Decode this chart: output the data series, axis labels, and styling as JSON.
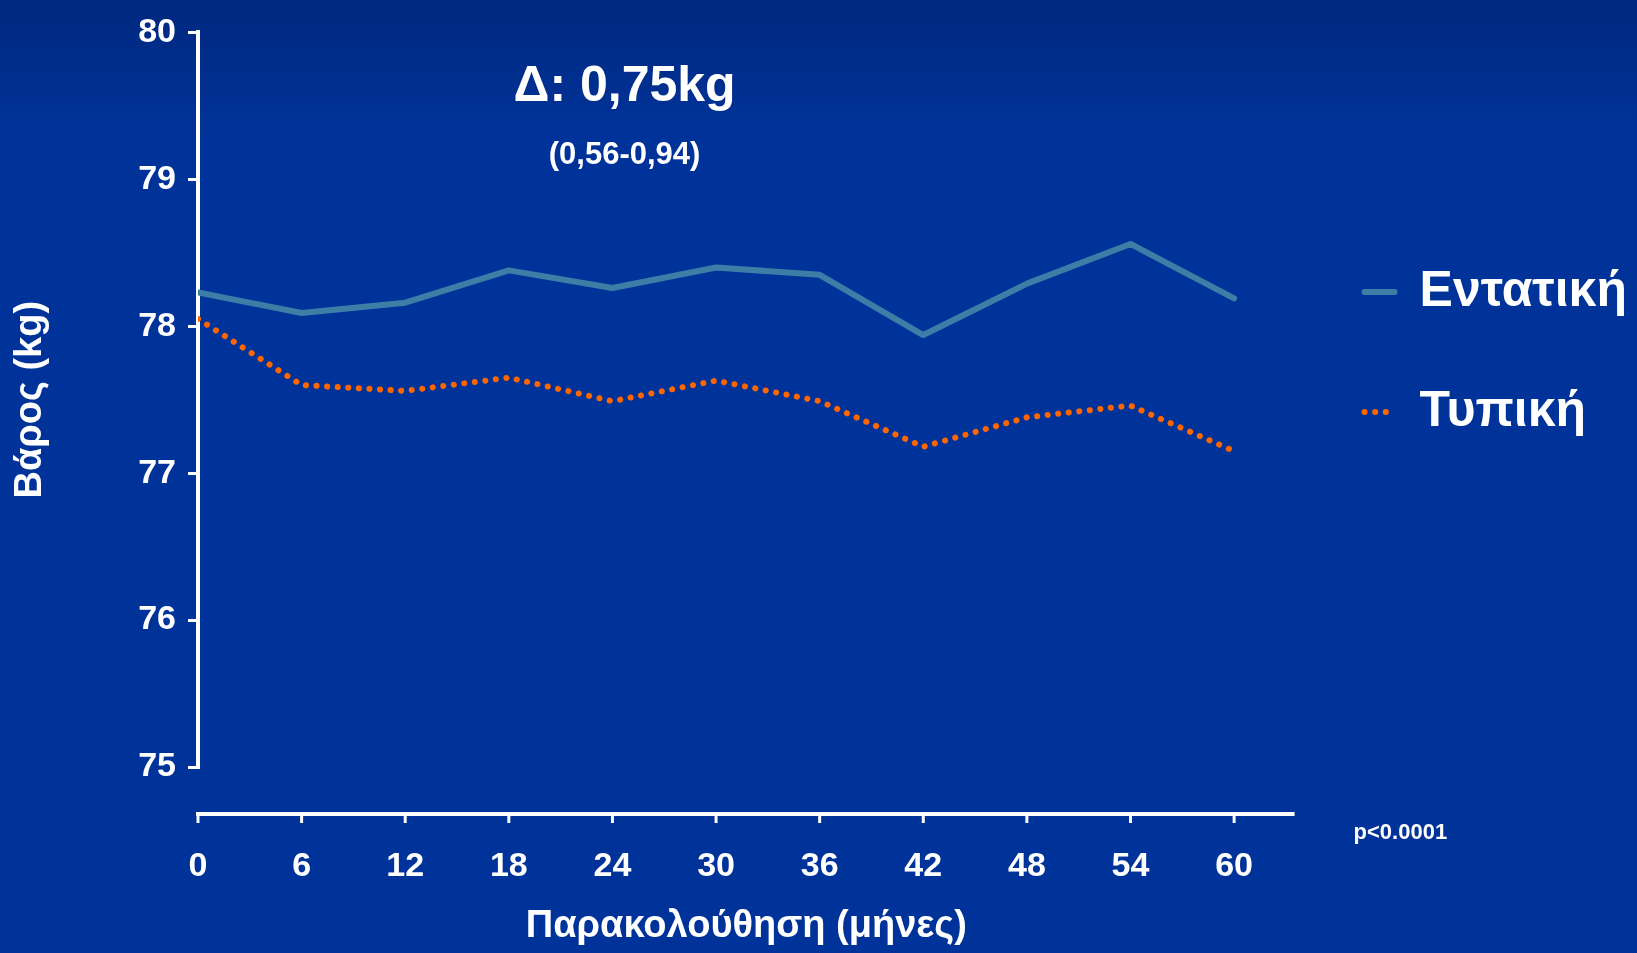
{
  "chart_data": {
    "type": "line",
    "xlabel": "Παρακολούθηση (μήνες)",
    "ylabel": "Βάρος (kg)",
    "x": [
      0,
      6,
      12,
      18,
      24,
      30,
      36,
      42,
      48,
      54,
      60
    ],
    "series": [
      {
        "name": "Εντατική",
        "color": "#3d7ea6",
        "line_style": "solid",
        "values": [
          78.23,
          78.09,
          78.16,
          78.38,
          78.26,
          78.4,
          78.35,
          77.94,
          78.29,
          78.56,
          78.19
        ]
      },
      {
        "name": "Τυπική",
        "color": "#ff6600",
        "line_style": "dotted",
        "values": [
          78.05,
          77.6,
          77.56,
          77.65,
          77.49,
          77.63,
          77.49,
          77.18,
          77.38,
          77.46,
          77.15
        ]
      }
    ],
    "xlim": [
      0,
      63.5
    ],
    "xticks": [
      0,
      6,
      12,
      18,
      24,
      30,
      36,
      42,
      48,
      54,
      60
    ],
    "ylim": [
      75,
      80
    ],
    "yticks": [
      75,
      76,
      77,
      78,
      79,
      80
    ],
    "legend": "right",
    "marker": "none",
    "annotations": [
      "Δ: 0,75kg",
      "(0,56-0,94)",
      "p<0.0001"
    ]
  }
}
